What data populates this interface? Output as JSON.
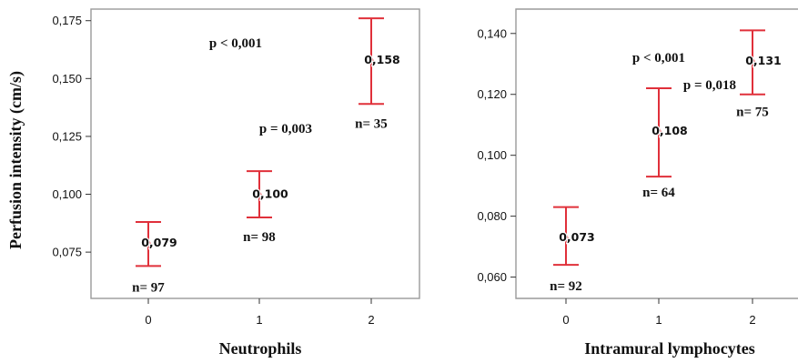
{
  "chart_data": [
    {
      "type": "scatter",
      "xlabel": "Neutrophils",
      "ylabel": "Perfusion intensity (cm/s)",
      "x": [
        0,
        1,
        2
      ],
      "x_ticks": [
        "0",
        "1",
        "2"
      ],
      "y_ticks": [
        "0,075",
        "0,100",
        "0,125",
        "0,150",
        "0,175"
      ],
      "ylim": [
        0.055,
        0.18
      ],
      "series": [
        {
          "values": [
            0.079,
            0.1,
            0.158
          ],
          "labels": [
            "0,079",
            "0,100",
            "0,158"
          ],
          "error_low": [
            0.069,
            0.09,
            0.139
          ],
          "error_high": [
            0.088,
            0.11,
            0.176
          ],
          "n_labels": [
            "n= 97",
            "n= 98",
            "n= 35"
          ]
        }
      ],
      "annotations": [
        "p < 0,001",
        "p = 0,003"
      ],
      "grid": false
    },
    {
      "type": "scatter",
      "xlabel": "Intramural lymphocytes",
      "ylabel": "",
      "x": [
        0,
        1,
        2
      ],
      "x_ticks": [
        "0",
        "1",
        "2"
      ],
      "y_ticks": [
        "0,060",
        "0,080",
        "0,100",
        "0,120",
        "0,140"
      ],
      "ylim": [
        0.053,
        0.148
      ],
      "series": [
        {
          "values": [
            0.073,
            0.108,
            0.131
          ],
          "labels": [
            "0,073",
            "0,108",
            "0,131"
          ],
          "error_low": [
            0.064,
            0.093,
            0.12
          ],
          "error_high": [
            0.083,
            0.122,
            0.141
          ],
          "n_labels": [
            "n= 92",
            "n= 64",
            "n= 75"
          ]
        }
      ],
      "annotations": [
        "p < 0,001",
        "p = 0,018"
      ],
      "grid": false
    }
  ],
  "colors": {
    "error_bar": "#e0303a",
    "frame": "#9a9a9a"
  }
}
